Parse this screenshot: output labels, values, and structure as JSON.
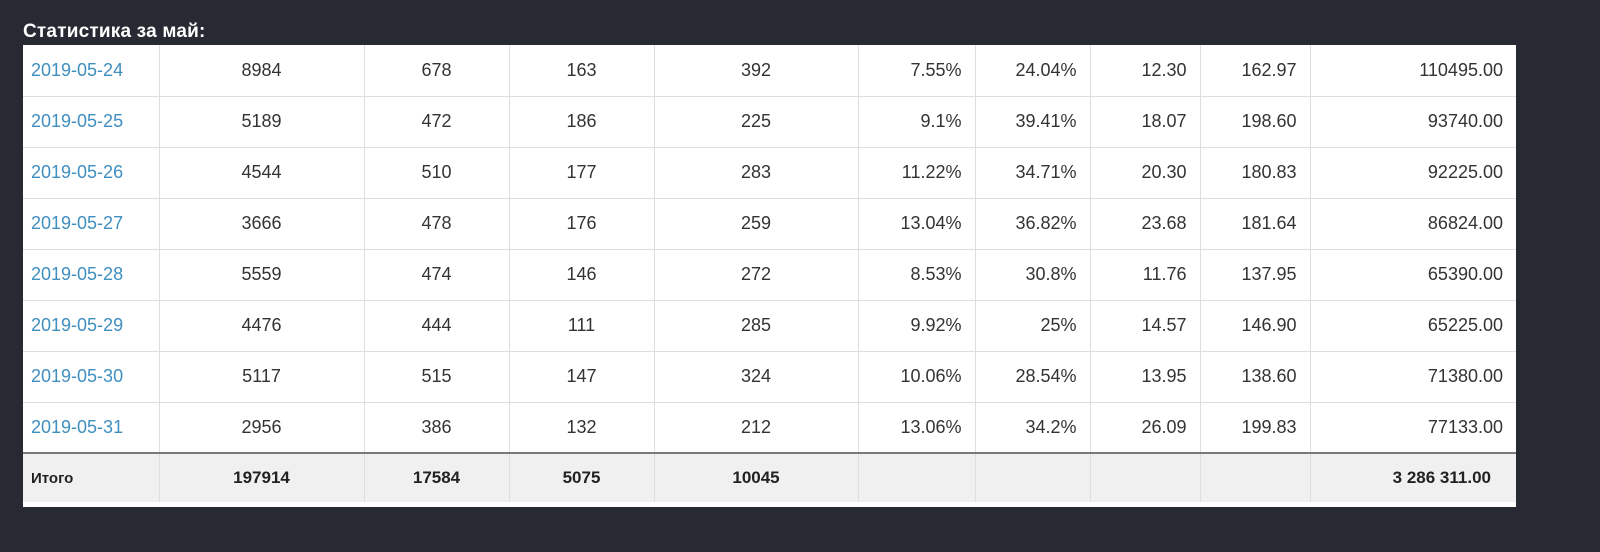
{
  "title": "Статистика за май:",
  "rows": [
    {
      "date": "2019-05-24",
      "c1": "8984",
      "c2": "678",
      "c3": "163",
      "c4": "392",
      "c5": "7.55%",
      "c6": "24.04%",
      "c7": "12.30",
      "c8": "162.97",
      "c9": "110495.00"
    },
    {
      "date": "2019-05-25",
      "c1": "5189",
      "c2": "472",
      "c3": "186",
      "c4": "225",
      "c5": "9.1%",
      "c6": "39.41%",
      "c7": "18.07",
      "c8": "198.60",
      "c9": "93740.00"
    },
    {
      "date": "2019-05-26",
      "c1": "4544",
      "c2": "510",
      "c3": "177",
      "c4": "283",
      "c5": "11.22%",
      "c6": "34.71%",
      "c7": "20.30",
      "c8": "180.83",
      "c9": "92225.00"
    },
    {
      "date": "2019-05-27",
      "c1": "3666",
      "c2": "478",
      "c3": "176",
      "c4": "259",
      "c5": "13.04%",
      "c6": "36.82%",
      "c7": "23.68",
      "c8": "181.64",
      "c9": "86824.00"
    },
    {
      "date": "2019-05-28",
      "c1": "5559",
      "c2": "474",
      "c3": "146",
      "c4": "272",
      "c5": "8.53%",
      "c6": "30.8%",
      "c7": "11.76",
      "c8": "137.95",
      "c9": "65390.00"
    },
    {
      "date": "2019-05-29",
      "c1": "4476",
      "c2": "444",
      "c3": "111",
      "c4": "285",
      "c5": "9.92%",
      "c6": "25%",
      "c7": "14.57",
      "c8": "146.90",
      "c9": "65225.00"
    },
    {
      "date": "2019-05-30",
      "c1": "5117",
      "c2": "515",
      "c3": "147",
      "c4": "324",
      "c5": "10.06%",
      "c6": "28.54%",
      "c7": "13.95",
      "c8": "138.60",
      "c9": "71380.00"
    },
    {
      "date": "2019-05-31",
      "c1": "2956",
      "c2": "386",
      "c3": "132",
      "c4": "212",
      "c5": "13.06%",
      "c6": "34.2%",
      "c7": "26.09",
      "c8": "199.83",
      "c9": "77133.00"
    }
  ],
  "total": {
    "label": "Итого",
    "c1": "197914",
    "c2": "17584",
    "c3": "5075",
    "c4": "10045",
    "c5": "",
    "c6": "",
    "c7": "",
    "c8": "",
    "c9": "3 286 311.00"
  },
  "colors": {
    "background": "#272a33",
    "link": "#3f8fc0",
    "total_row_bg": "#f0f0f0"
  }
}
